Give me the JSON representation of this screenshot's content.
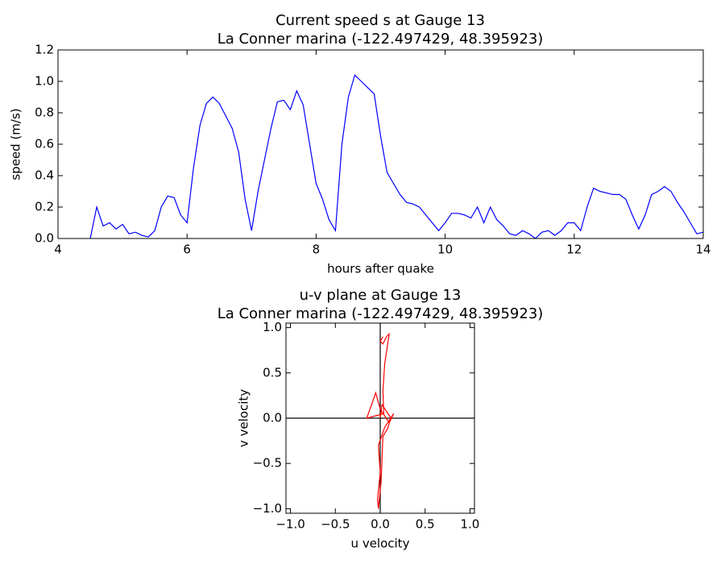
{
  "chart_data": [
    {
      "type": "line",
      "title": "Current speed s at Gauge 13",
      "subtitle": "La Conner marina  (-122.497429, 48.395923)",
      "xlabel": "hours after quake",
      "ylabel": "speed (m/s)",
      "xlim": [
        4,
        14
      ],
      "xticks": [
        4,
        6,
        8,
        10,
        12,
        14
      ],
      "ylim": [
        0,
        1.2
      ],
      "yticks": [
        {
          "value": 0,
          "label": "0.0"
        },
        0.2,
        0.4,
        0.6,
        0.8,
        {
          "value": 1,
          "label": "1.0"
        },
        1.2
      ],
      "x": [
        4.5,
        4.6,
        4.7,
        4.8,
        4.9,
        5.0,
        5.1,
        5.2,
        5.3,
        5.4,
        5.5,
        5.6,
        5.7,
        5.8,
        5.9,
        6.0,
        6.1,
        6.2,
        6.3,
        6.4,
        6.5,
        6.6,
        6.7,
        6.8,
        6.9,
        7.0,
        7.1,
        7.2,
        7.3,
        7.4,
        7.5,
        7.6,
        7.7,
        7.8,
        7.9,
        8.0,
        8.1,
        8.2,
        8.3,
        8.4,
        8.5,
        8.6,
        8.7,
        8.8,
        8.9,
        9.0,
        9.1,
        9.2,
        9.3,
        9.4,
        9.5,
        9.6,
        9.7,
        9.8,
        9.9,
        10.0,
        10.1,
        10.2,
        10.3,
        10.4,
        10.5,
        10.6,
        10.7,
        10.8,
        10.9,
        11.0,
        11.1,
        11.2,
        11.3,
        11.4,
        11.5,
        11.6,
        11.7,
        11.8,
        11.9,
        12.0,
        12.1,
        12.2,
        12.3,
        12.4,
        12.5,
        12.6,
        12.7,
        12.8,
        12.9,
        13.0,
        13.1,
        13.2,
        13.3,
        13.4,
        13.5,
        13.6,
        13.7,
        13.8,
        13.9,
        14.0
      ],
      "series": [
        {
          "name": "speed",
          "color": "#0000ff",
          "values": [
            0.0,
            0.2,
            0.08,
            0.1,
            0.06,
            0.09,
            0.03,
            0.04,
            0.02,
            0.01,
            0.05,
            0.2,
            0.27,
            0.26,
            0.15,
            0.1,
            0.45,
            0.72,
            0.86,
            0.9,
            0.86,
            0.78,
            0.7,
            0.55,
            0.25,
            0.05,
            0.3,
            0.5,
            0.7,
            0.87,
            0.88,
            0.82,
            0.94,
            0.85,
            0.6,
            0.35,
            0.25,
            0.12,
            0.05,
            0.6,
            0.9,
            1.04,
            1.0,
            0.96,
            0.92,
            0.65,
            0.42,
            0.35,
            0.28,
            0.23,
            0.22,
            0.2,
            0.15,
            0.1,
            0.05,
            0.1,
            0.16,
            0.16,
            0.15,
            0.13,
            0.2,
            0.1,
            0.2,
            0.12,
            0.08,
            0.03,
            0.02,
            0.05,
            0.03,
            0.0,
            0.04,
            0.05,
            0.02,
            0.05,
            0.1,
            0.1,
            0.05,
            0.2,
            0.32,
            0.3,
            0.29,
            0.28,
            0.28,
            0.25,
            0.15,
            0.06,
            0.15,
            0.28,
            0.3,
            0.33,
            0.3,
            0.23,
            0.17,
            0.1,
            0.03,
            0.04
          ]
        }
      ]
    },
    {
      "type": "line",
      "title": "u-v plane at Gauge 13",
      "subtitle": "La Conner marina  (-122.497429, 48.395923)",
      "xlabel": "u velocity",
      "ylabel": "v velocity",
      "xlim": [
        -1.05,
        1.05
      ],
      "xticks": [
        {
          "value": -1,
          "label": "−1.0"
        },
        {
          "value": -0.5,
          "label": "−0.5"
        },
        {
          "value": 0,
          "label": "0.0"
        },
        0.5,
        {
          "value": 1,
          "label": "1.0"
        }
      ],
      "ylim": [
        -1.05,
        1.05
      ],
      "yticks": [
        {
          "value": -1,
          "label": "−1.0"
        },
        {
          "value": -0.5,
          "label": "−0.5"
        },
        {
          "value": 0,
          "label": "0.0"
        },
        0.5,
        {
          "value": 1,
          "label": "1.0"
        }
      ],
      "x": [
        0.03,
        0.0,
        0.03,
        0.07,
        0.1,
        0.05,
        0.03,
        0.04,
        -0.15,
        -0.05,
        0.0,
        0.1,
        0.15,
        0.05,
        -0.02,
        0.0,
        -0.03,
        -0.02,
        0.01,
        0.03,
        0.08,
        0.12,
        0.02,
        0.0
      ],
      "series": [
        {
          "name": "v",
          "color": "#ff0000",
          "values": [
            0.9,
            0.85,
            0.82,
            0.9,
            0.93,
            0.6,
            0.3,
            0.05,
            0.0,
            0.28,
            0.1,
            -0.05,
            0.05,
            -0.1,
            -0.3,
            -0.6,
            -0.9,
            -1.0,
            -0.7,
            -0.2,
            -0.12,
            0.0,
            0.15,
            0.0
          ]
        }
      ]
    }
  ]
}
